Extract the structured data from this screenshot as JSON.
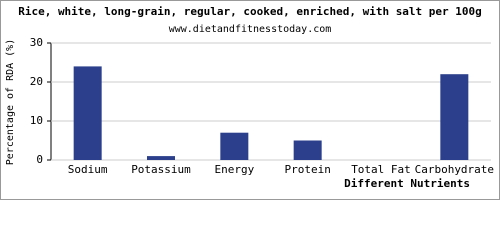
{
  "chart_data": {
    "type": "bar",
    "title": "Rice, white, long-grain, regular, cooked, enriched, with salt per 100g",
    "subtitle": "www.dietandfitnesstoday.com",
    "x_label": "Different Nutrients",
    "y_label": "Percentage of RDA (%)",
    "categories": [
      "Sodium",
      "Potassium",
      "Energy",
      "Protein",
      "Total Fat",
      "Carbohydrate"
    ],
    "values": [
      24,
      1,
      7,
      5,
      0,
      22
    ],
    "color": "#2b3f8c",
    "ylim": [
      0,
      30
    ],
    "yticks": [
      0,
      10,
      20,
      30
    ],
    "grid": true
  }
}
